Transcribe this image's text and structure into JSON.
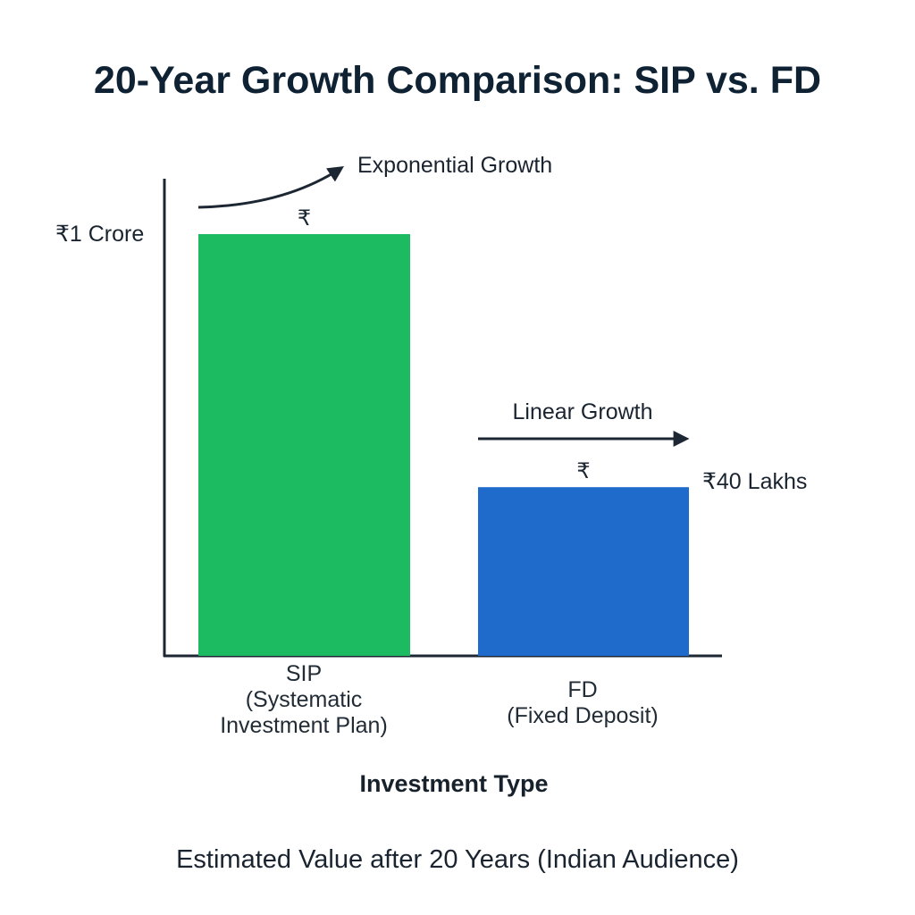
{
  "chart_data": {
    "type": "bar",
    "title": "20-Year Growth Comparison: SIP vs. FD",
    "categories": [
      [
        "SIP",
        "(Systematic",
        "Investment Plan)"
      ],
      [
        "FD",
        "(Fixed Deposit)"
      ]
    ],
    "values": [
      10000000,
      4000000
    ],
    "value_labels": [
      "₹1 Crore",
      "₹40 Lakhs"
    ],
    "bar_symbols": [
      "₹",
      "₹"
    ],
    "annotations": [
      "Exponential Growth",
      "Linear Growth"
    ],
    "bar_colors": [
      "#1dbb61",
      "#1f6bcb"
    ],
    "axis_color": "#1c2733",
    "xlabel": "Investment Type",
    "ylabel": "",
    "ylim": [
      0,
      10000000
    ],
    "grid": false
  },
  "footer": "Estimated Value after 20 Years (Indian Audience)"
}
